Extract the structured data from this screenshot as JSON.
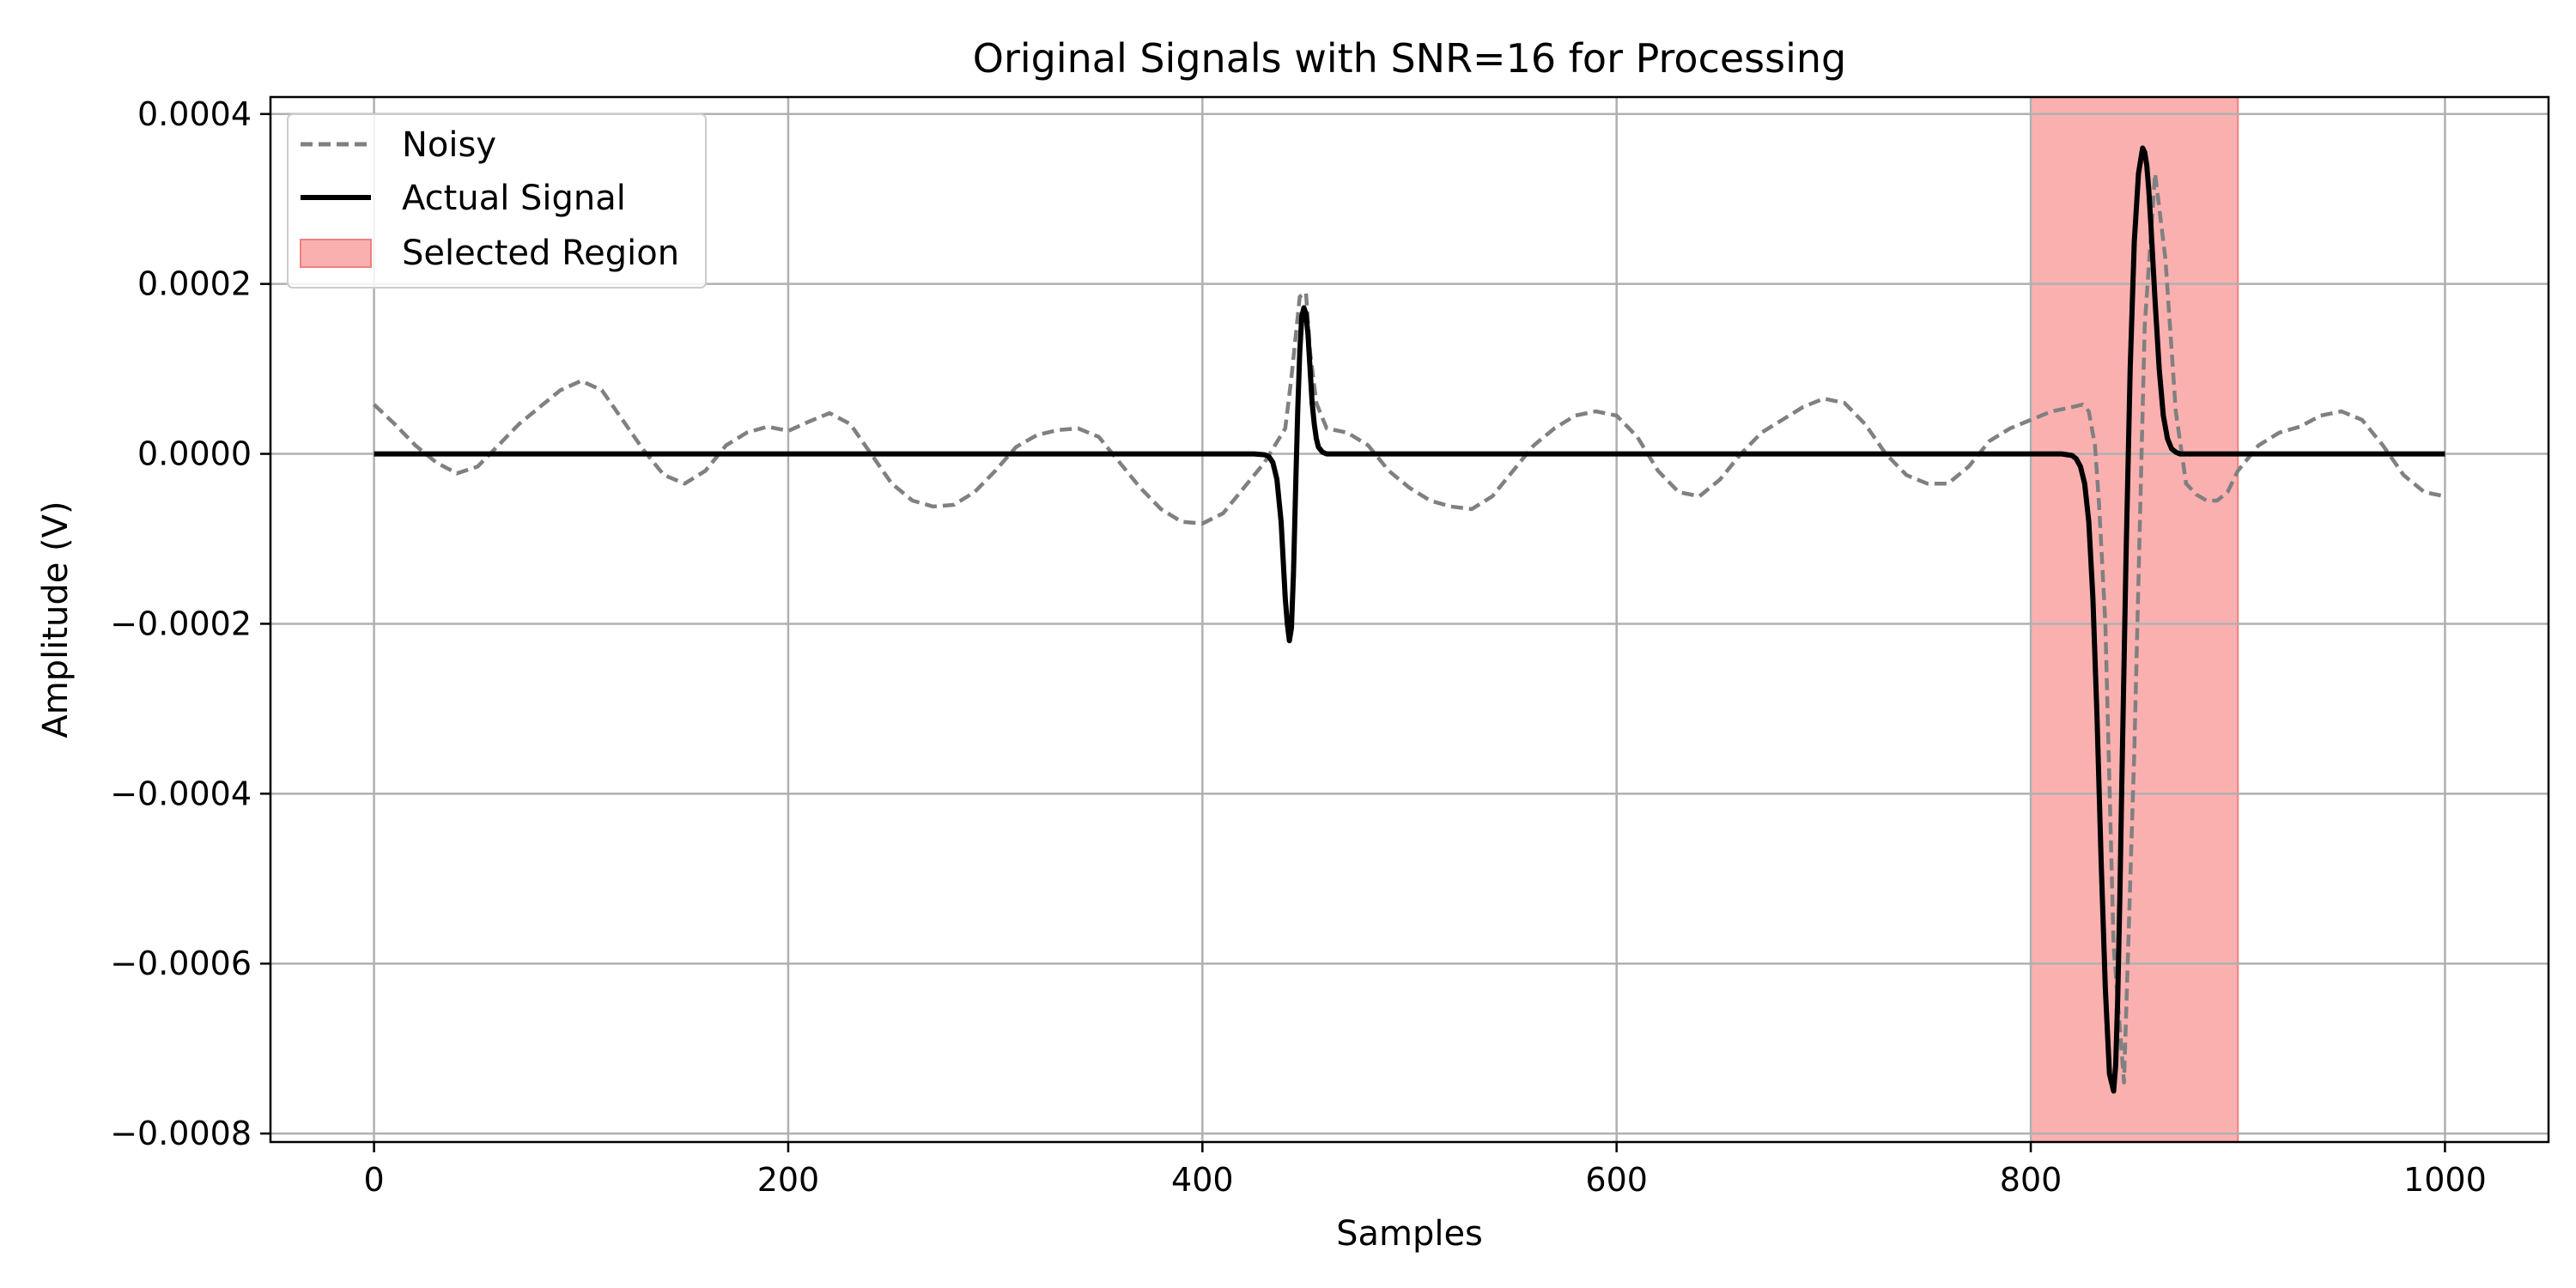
{
  "chart_data": {
    "type": "line",
    "title": "Original Signals with SNR=16 for Processing",
    "xlabel": "Samples",
    "ylabel": "Amplitude (V)",
    "xlim": [
      -50,
      1050
    ],
    "ylim": [
      -0.00081,
      0.00042
    ],
    "xticks": [
      0,
      200,
      400,
      600,
      800,
      1000
    ],
    "xtick_labels": [
      "0",
      "200",
      "400",
      "600",
      "800",
      "1000"
    ],
    "yticks": [
      0.0004,
      0.0002,
      0.0,
      -0.0002,
      -0.0004,
      -0.0006,
      -0.0008
    ],
    "ytick_labels": [
      "0.0004",
      "0.0002",
      "0.0000",
      "−0.0002",
      "−0.0004",
      "−0.0006",
      "−0.0008"
    ],
    "grid": true,
    "legend_position": "top-left",
    "selected_region": {
      "name": "Selected Region",
      "x_start": 800,
      "x_end": 900,
      "color": "#fbb0b0",
      "edge_color": "#f08080"
    },
    "series": [
      {
        "name": "Noisy",
        "style": "dashed",
        "color": "#808080",
        "x": [
          0,
          10,
          20,
          30,
          40,
          50,
          60,
          70,
          80,
          90,
          100,
          110,
          120,
          130,
          140,
          150,
          160,
          170,
          180,
          190,
          200,
          210,
          220,
          230,
          240,
          250,
          260,
          270,
          280,
          290,
          300,
          310,
          320,
          330,
          340,
          350,
          360,
          370,
          380,
          390,
          400,
          410,
          420,
          430,
          440,
          443,
          447,
          450,
          452,
          455,
          460,
          470,
          480,
          490,
          500,
          510,
          520,
          530,
          540,
          550,
          560,
          570,
          580,
          590,
          600,
          610,
          620,
          630,
          640,
          650,
          660,
          670,
          680,
          690,
          700,
          710,
          720,
          730,
          740,
          750,
          760,
          770,
          780,
          790,
          800,
          810,
          820,
          825,
          828,
          831,
          833,
          836,
          840,
          845,
          850,
          855,
          860,
          865,
          870,
          875,
          880,
          885,
          890,
          895,
          900,
          910,
          920,
          930,
          940,
          950,
          960,
          970,
          980,
          990,
          1000
        ],
        "y": [
          5.8e-05,
          3.5e-05,
          1e-05,
          -1e-05,
          -2.3e-05,
          -1.5e-05,
          1e-05,
          3.5e-05,
          5.5e-05,
          7.5e-05,
          8.6e-05,
          7.5e-05,
          4e-05,
          5e-06,
          -2.5e-05,
          -3.5e-05,
          -2e-05,
          1e-05,
          2.5e-05,
          3.2e-05,
          2.7e-05,
          3.8e-05,
          4.8e-05,
          3.5e-05,
          0.0,
          -3.5e-05,
          -5.5e-05,
          -6.2e-05,
          -6e-05,
          -4.5e-05,
          -2e-05,
          8e-06,
          2.2e-05,
          2.8e-05,
          3e-05,
          2e-05,
          -1e-05,
          -4e-05,
          -6.5e-05,
          -8e-05,
          -8.2e-05,
          -7e-05,
          -4e-05,
          -1e-05,
          3e-05,
          9e-05,
          0.000185,
          0.00019,
          0.00012,
          6e-05,
          3e-05,
          2.5e-05,
          1e-05,
          -2e-05,
          -4e-05,
          -5.5e-05,
          -6.2e-05,
          -6.5e-05,
          -5e-05,
          -2e-05,
          1e-05,
          3e-05,
          4.5e-05,
          5e-05,
          4.5e-05,
          2e-05,
          -2e-05,
          -4.5e-05,
          -5e-05,
          -3e-05,
          0.0,
          2.5e-05,
          4e-05,
          5.5e-05,
          6.5e-05,
          6e-05,
          3.5e-05,
          0.0,
          -2.5e-05,
          -3.5e-05,
          -3.5e-05,
          -1.5e-05,
          1.5e-05,
          3e-05,
          4e-05,
          5e-05,
          5.5e-05,
          5.8e-05,
          5e-05,
          1e-05,
          -6e-05,
          -0.0002,
          -0.00058,
          -0.00074,
          -0.00035,
          0.00015,
          0.00033,
          0.00023,
          5e-05,
          -3.5e-05,
          -4.8e-05,
          -5.5e-05,
          -5.5e-05,
          -4.5e-05,
          -2e-05,
          1e-05,
          2.5e-05,
          3.2e-05,
          4.5e-05,
          5e-05,
          4e-05,
          1e-05,
          -2.5e-05,
          -4.5e-05,
          -5e-05
        ]
      },
      {
        "name": "Actual Signal",
        "style": "solid",
        "color": "#000000",
        "x": [
          0,
          100,
          200,
          300,
          400,
          425,
          430,
          432,
          434,
          436,
          438,
          440,
          441,
          442,
          443,
          444,
          445,
          446,
          447,
          448,
          449,
          450,
          451,
          452,
          453,
          454,
          455,
          456,
          458,
          460,
          462,
          465,
          470,
          500,
          600,
          700,
          800,
          815,
          820,
          822,
          824,
          826,
          828,
          830,
          832,
          834,
          836,
          838,
          840,
          841,
          842,
          843,
          844,
          846,
          848,
          850,
          852,
          854,
          855,
          856,
          857,
          858,
          860,
          862,
          864,
          866,
          868,
          870,
          872,
          875,
          880,
          900,
          1000
        ],
        "y": [
          0.0,
          0.0,
          0.0,
          0.0,
          0.0,
          0.0,
          -1e-06,
          -3e-06,
          -1e-05,
          -3e-05,
          -8e-05,
          -0.00017,
          -0.0002,
          -0.00022,
          -0.000205,
          -0.00014,
          -4e-05,
          5e-05,
          0.00012,
          0.000162,
          0.000172,
          0.000165,
          0.00014,
          0.0001,
          6e-05,
          3.5e-05,
          1.8e-05,
          8e-06,
          2e-06,
          0.0,
          0.0,
          0.0,
          0.0,
          0.0,
          0.0,
          0.0,
          0.0,
          0.0,
          -2e-06,
          -6e-06,
          -1.5e-05,
          -3.5e-05,
          -8e-05,
          -0.00017,
          -0.00031,
          -0.00048,
          -0.00063,
          -0.00073,
          -0.00075,
          -0.00072,
          -0.00064,
          -0.00052,
          -0.00038,
          -0.00012,
          0.0001,
          0.00025,
          0.00033,
          0.00036,
          0.000355,
          0.00034,
          0.00031,
          0.00027,
          0.00018,
          0.0001,
          4.5e-05,
          1.8e-05,
          6e-06,
          2e-06,
          0.0,
          0.0,
          0.0,
          0.0,
          0.0
        ]
      }
    ]
  }
}
